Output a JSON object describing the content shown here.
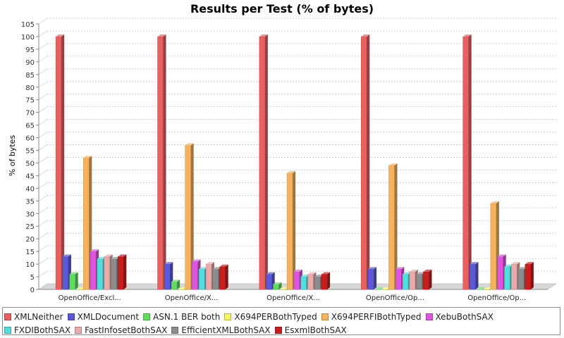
{
  "chart_data": {
    "type": "bar",
    "title": "Results per Test (% of bytes)",
    "xlabel": "",
    "ylabel": "% of bytes",
    "ylim": [
      0,
      105
    ],
    "ytick_step": 5,
    "grid": true,
    "legend_position": "bottom",
    "categories": [
      "OpenOffice/Excl...",
      "OpenOffice/X...",
      "OpenOffice/X...",
      "OpenOffice/Op...",
      "OpenOffice/Op..."
    ],
    "series": [
      {
        "name": "XMLNeither",
        "color": "#e8605f",
        "values": [
          100,
          100,
          100,
          100,
          100
        ]
      },
      {
        "name": "XMLDocument",
        "color": "#5b59d6",
        "values": [
          13,
          10,
          6,
          8,
          10
        ]
      },
      {
        "name": "ASN.1 BER both",
        "color": "#5fdc5f",
        "values": [
          6,
          3,
          2,
          0,
          0
        ]
      },
      {
        "name": "X694PERBothTyped",
        "color": "#f4f45f",
        "values": [
          0,
          0,
          0,
          0,
          0
        ]
      },
      {
        "name": "X694PERFIBothTyped",
        "color": "#f5b35f",
        "values": [
          52,
          57,
          46,
          49,
          34
        ]
      },
      {
        "name": "XebuBothSAX",
        "color": "#dd55dd",
        "values": [
          15,
          11,
          7,
          8,
          13
        ]
      },
      {
        "name": "FXDIBothSAX",
        "color": "#55dcdc",
        "values": [
          12,
          8,
          5,
          6,
          9
        ]
      },
      {
        "name": "FastInfosetBothSAX",
        "color": "#e8aaaa",
        "values": [
          13,
          10,
          6,
          7,
          10
        ]
      },
      {
        "name": "EfficientXMLBothSAX",
        "color": "#8c8c8c",
        "values": [
          12,
          8,
          5,
          6,
          8
        ]
      },
      {
        "name": "EsxmlBothSAX",
        "color": "#c81e1e",
        "values": [
          13,
          9,
          6,
          7,
          10
        ]
      }
    ]
  }
}
